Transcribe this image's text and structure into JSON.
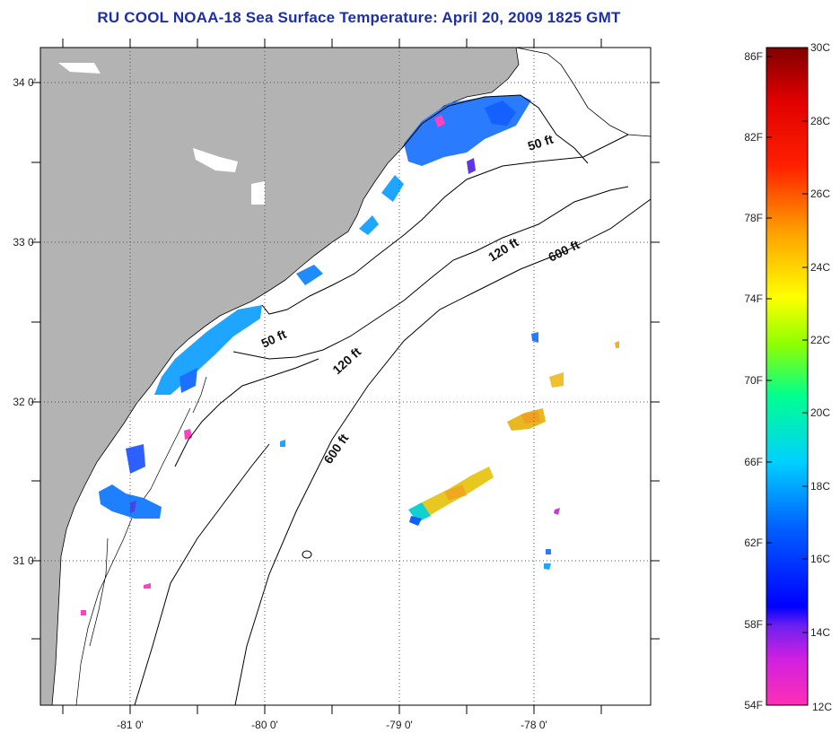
{
  "title": "RU COOL  NOAA-18  Sea Surface Temperature:  April 20, 2009 1825 GMT",
  "map": {
    "x_ticks": [
      "-81 0'",
      "-80 0'",
      "-79 0'",
      "-78 0'"
    ],
    "y_ticks": [
      "34 0'",
      "33 0'",
      "32 0'",
      "31 0'"
    ],
    "contours": {
      "c50_north": "50 ft",
      "c50_south": "50 ft",
      "c120_north": "120 ft",
      "c120_south": "120 ft",
      "c600_north": "600 ft",
      "c600_south": "600 ft"
    },
    "colors": {
      "land": "#b3b3b3",
      "ocean_nodata": "#ffffff",
      "coast": "#000000",
      "grid": "#555555"
    }
  },
  "colorbar": {
    "f_labels": [
      "86F",
      "82F",
      "78F",
      "74F",
      "70F",
      "66F",
      "62F",
      "58F",
      "54F"
    ],
    "c_labels": [
      "30C",
      "28C",
      "26C",
      "24C",
      "22C",
      "20C",
      "18C",
      "16C",
      "14C",
      "12C"
    ],
    "stops": [
      "#ff2fb4",
      "#a020f0",
      "#0000ff",
      "#0080ff",
      "#00ffff",
      "#00ff80",
      "#80ff00",
      "#ffff00",
      "#ffa000",
      "#ff4000",
      "#ff0000",
      "#800000"
    ]
  }
}
